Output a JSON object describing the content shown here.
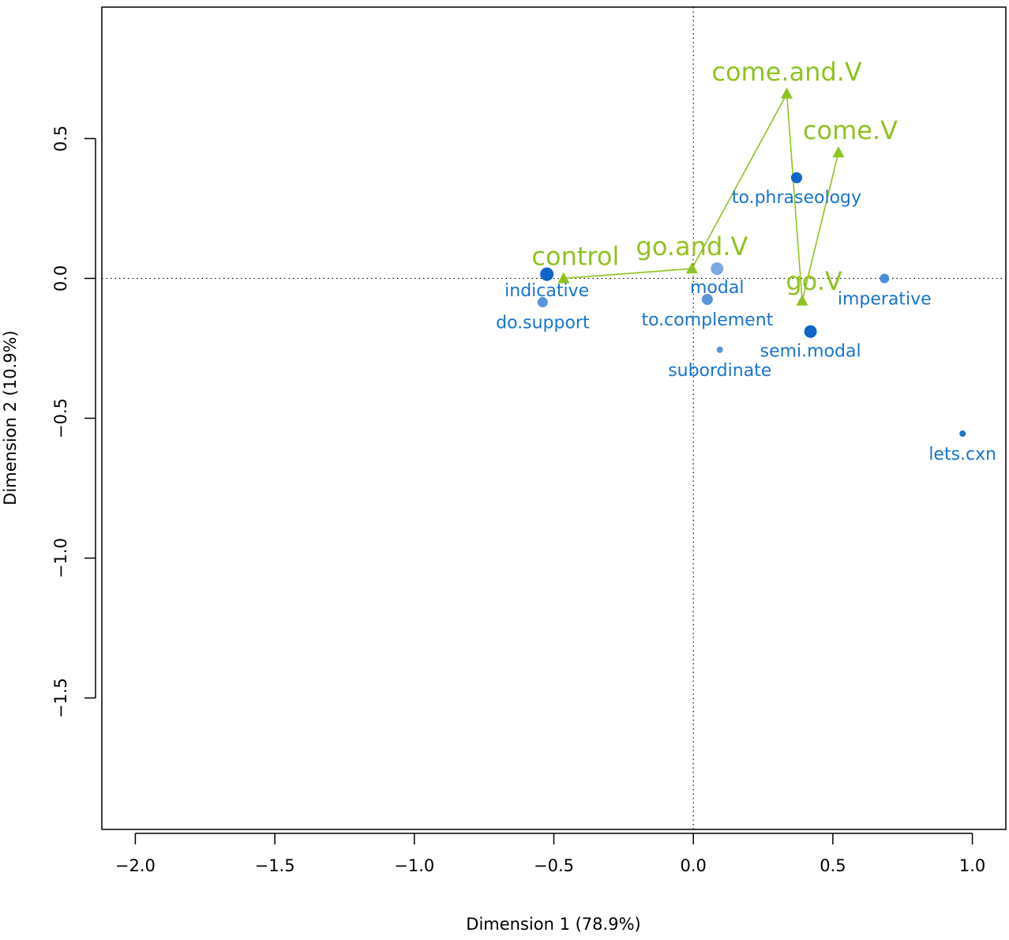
{
  "chart_data": {
    "type": "scatter",
    "title": "",
    "xlabel": "Dimension 1 (78.9%)",
    "ylabel": "Dimension 2 (10.9%)",
    "xlim": [
      -2.12,
      1.12
    ],
    "ylim": [
      -1.97,
      0.97
    ],
    "xticks": [
      -2.0,
      -1.5,
      -1.0,
      -0.5,
      0.0,
      0.5,
      1.0
    ],
    "yticks": [
      -1.5,
      -1.0,
      -0.5,
      0.0,
      0.5
    ],
    "xtick_labels": [
      "−2.0",
      "−1.5",
      "−1.0",
      "−0.5",
      "0.0",
      "0.5",
      "1.0"
    ],
    "ytick_labels": [
      "−1.5",
      "−1.0",
      "−0.5",
      "0.0",
      "0.5"
    ],
    "reference_lines": {
      "x": 0,
      "y": 0,
      "style": "dotted"
    },
    "grid": false,
    "colors": {
      "rows": "#1874cd",
      "columns": "#8fc31f"
    },
    "series": [
      {
        "name": "",
        "marker": "circle",
        "points": [
          {
            "label": "indicative",
            "x": -0.525,
            "y": 0.015,
            "size": 8.5,
            "color": "#0f65c8"
          },
          {
            "label": "do.support",
            "x": -0.54,
            "y": -0.085,
            "size": 6.5,
            "color": "#5a95d8"
          },
          {
            "label": "modal",
            "x": 0.085,
            "y": 0.035,
            "size": 8,
            "color": "#79a9e0"
          },
          {
            "label": "to.complement",
            "x": 0.05,
            "y": -0.075,
            "size": 7,
            "color": "#5a95d8"
          },
          {
            "label": "subordinate",
            "x": 0.095,
            "y": -0.255,
            "size": 4,
            "color": "#5a95d8"
          },
          {
            "label": "to.phraseology",
            "x": 0.37,
            "y": 0.36,
            "size": 7,
            "color": "#0f65c8"
          },
          {
            "label": "semi.modal",
            "x": 0.42,
            "y": -0.19,
            "size": 8,
            "color": "#0f65c8"
          },
          {
            "label": "imperative",
            "x": 0.685,
            "y": 0.0,
            "size": 6,
            "color": "#4a8cd6"
          },
          {
            "label": "lets.cxn",
            "x": 0.965,
            "y": -0.555,
            "size": 4,
            "color": "#1874cd"
          }
        ]
      },
      {
        "name": "",
        "marker": "triangle",
        "connected": true,
        "points": [
          {
            "label": "control",
            "x": -0.465,
            "y": 0.0
          },
          {
            "label": "go.and.V",
            "x": -0.005,
            "y": 0.035
          },
          {
            "label": "come.and.V",
            "x": 0.335,
            "y": 0.66
          },
          {
            "label": "go.V",
            "x": 0.39,
            "y": -0.08
          },
          {
            "label": "come.V",
            "x": 0.52,
            "y": 0.45
          }
        ]
      }
    ]
  }
}
